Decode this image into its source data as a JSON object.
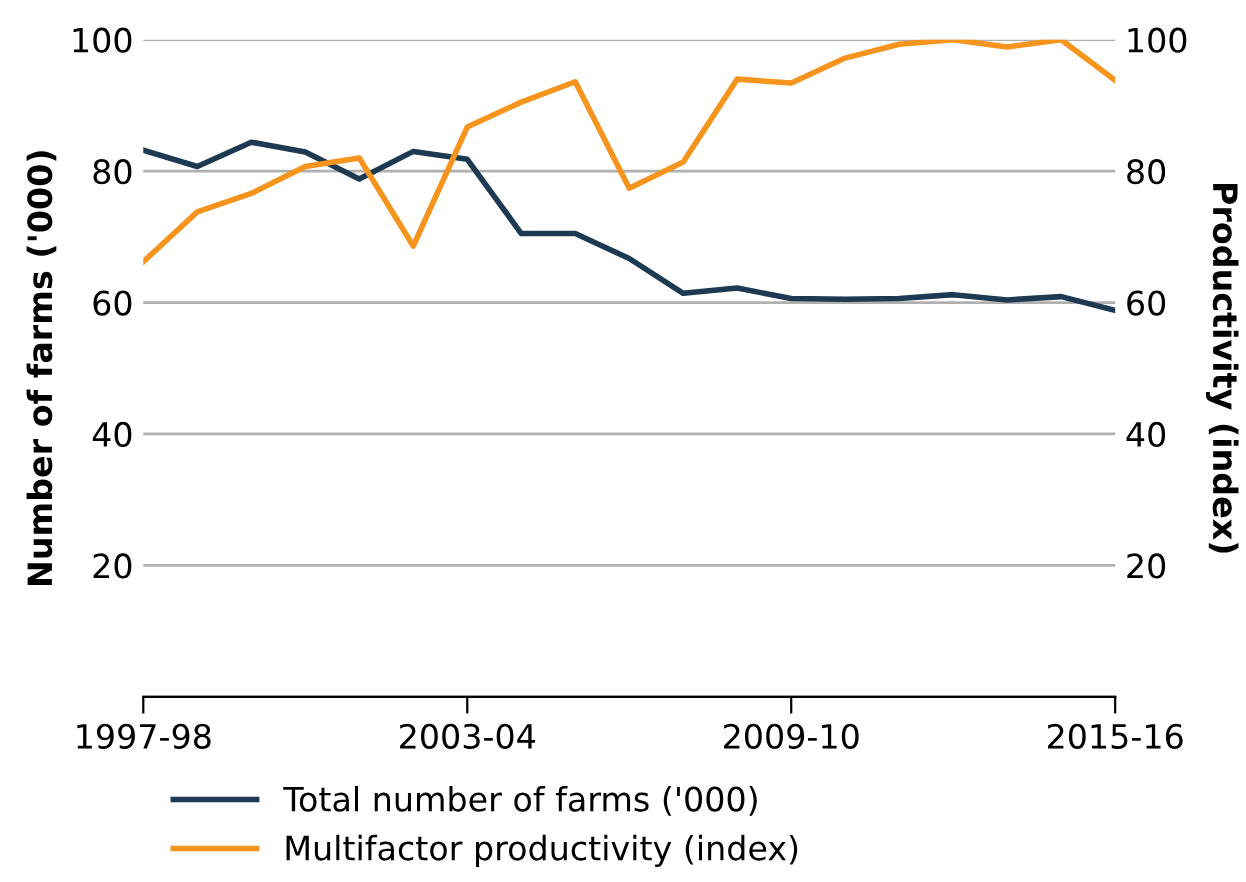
{
  "chart_data": {
    "type": "line",
    "ylabel": "Number of farms ('000)",
    "y2label": "Productivity (index)",
    "categories": [
      "1997-98",
      null,
      null,
      null,
      null,
      null,
      "2003-04",
      null,
      null,
      null,
      null,
      null,
      "2009-10",
      null,
      null,
      null,
      null,
      null,
      "2015-16"
    ],
    "series": [
      {
        "name": "Total number of farms ('000)",
        "color": "#1d3a52",
        "values": [
          83.2,
          80.7,
          84.4,
          82.9,
          78.8,
          83.0,
          81.8,
          70.5,
          70.5,
          66.7,
          61.4,
          62.2,
          60.6,
          60.5,
          60.6,
          61.2,
          60.4,
          60.9,
          58.8
        ]
      },
      {
        "name": "Multifactor productivity (index)",
        "color": "#f7941d",
        "values": [
          66.2,
          73.8,
          76.6,
          80.7,
          82.0,
          68.6,
          86.7,
          90.5,
          93.6,
          77.4,
          81.4,
          94.0,
          93.4,
          97.2,
          99.3,
          100.0,
          98.9,
          100.0,
          93.8
        ]
      }
    ],
    "ylim": [
      0,
      100
    ],
    "yticks": [
      20,
      40,
      60,
      80,
      100
    ],
    "y2lim": [
      0,
      100
    ],
    "y2ticks": [
      20,
      40,
      60,
      80,
      100
    ],
    "grid": "y",
    "legend": "bottom",
    "marker": "none",
    "line_style": "solid"
  }
}
